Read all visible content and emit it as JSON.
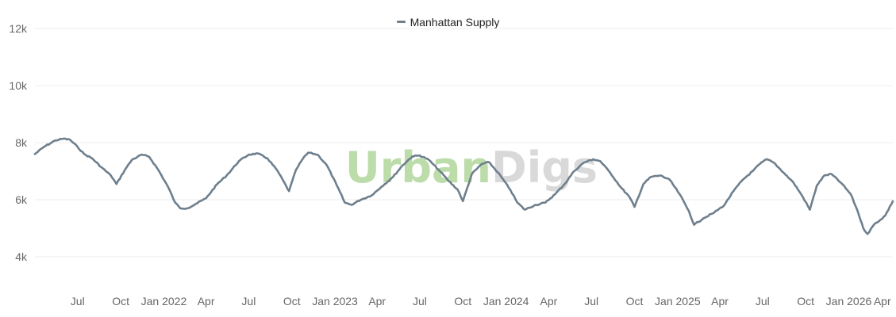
{
  "legend": {
    "label": "Manhattan Supply"
  },
  "watermark": {
    "part1": "Urban",
    "part2": "Digs",
    "color1": "#bcdcaa",
    "color2": "#d9d9d9"
  },
  "colors": {
    "series": "#6e7f8d",
    "grid": "#ececec"
  },
  "chart_data": {
    "type": "line",
    "title": "",
    "xlabel": "",
    "ylabel": "",
    "ylim": [
      3000,
      12500
    ],
    "xlim": [
      "2021-04-01",
      "2026-04-05"
    ],
    "grid": true,
    "legend_position": "top-center",
    "y_ticks": [
      {
        "value": 4000,
        "label": "4k"
      },
      {
        "value": 6000,
        "label": "6k"
      },
      {
        "value": 8000,
        "label": "8k"
      },
      {
        "value": 10000,
        "label": "10k"
      },
      {
        "value": 12000,
        "label": "12k"
      }
    ],
    "x_ticks": [
      {
        "value": "2021-07-01",
        "label": "Jul"
      },
      {
        "value": "2021-10-01",
        "label": "Oct"
      },
      {
        "value": "2022-01-01",
        "label": "Jan 2022"
      },
      {
        "value": "2022-04-01",
        "label": "Apr"
      },
      {
        "value": "2022-07-01",
        "label": "Jul"
      },
      {
        "value": "2022-10-01",
        "label": "Oct"
      },
      {
        "value": "2023-01-01",
        "label": "Jan 2023"
      },
      {
        "value": "2023-04-01",
        "label": "Apr"
      },
      {
        "value": "2023-07-01",
        "label": "Jul"
      },
      {
        "value": "2023-10-01",
        "label": "Oct"
      },
      {
        "value": "2024-01-01",
        "label": "Jan 2024"
      },
      {
        "value": "2024-04-01",
        "label": "Apr"
      },
      {
        "value": "2024-07-01",
        "label": "Jul"
      },
      {
        "value": "2024-10-01",
        "label": "Oct"
      },
      {
        "value": "2025-01-01",
        "label": "Jan 2025"
      },
      {
        "value": "2025-04-01",
        "label": "Apr"
      },
      {
        "value": "2025-07-01",
        "label": "Jul"
      },
      {
        "value": "2025-10-01",
        "label": "Oct"
      },
      {
        "value": "2026-01-01",
        "label": "Jan 2026"
      },
      {
        "value": "2026-04-01",
        "label": "Apr"
      }
    ],
    "series": [
      {
        "name": "Manhattan Supply",
        "points": [
          [
            "2021-04-01",
            7600
          ],
          [
            "2021-04-20",
            7850
          ],
          [
            "2021-05-15",
            8080
          ],
          [
            "2021-06-01",
            8140
          ],
          [
            "2021-06-15",
            8100
          ],
          [
            "2021-07-01",
            7850
          ],
          [
            "2021-07-15",
            7600
          ],
          [
            "2021-08-01",
            7450
          ],
          [
            "2021-08-20",
            7150
          ],
          [
            "2021-09-10",
            6850
          ],
          [
            "2021-09-22",
            6550
          ],
          [
            "2021-10-10",
            7050
          ],
          [
            "2021-10-25",
            7400
          ],
          [
            "2021-11-15",
            7580
          ],
          [
            "2021-12-01",
            7500
          ],
          [
            "2021-12-20",
            7050
          ],
          [
            "2022-01-10",
            6450
          ],
          [
            "2022-01-25",
            5900
          ],
          [
            "2022-02-05",
            5700
          ],
          [
            "2022-02-20",
            5700
          ],
          [
            "2022-03-10",
            5850
          ],
          [
            "2022-04-01",
            6050
          ],
          [
            "2022-04-25",
            6550
          ],
          [
            "2022-05-15",
            6850
          ],
          [
            "2022-06-10",
            7350
          ],
          [
            "2022-07-01",
            7580
          ],
          [
            "2022-07-20",
            7620
          ],
          [
            "2022-08-10",
            7450
          ],
          [
            "2022-09-01",
            7000
          ],
          [
            "2022-09-25",
            6300
          ],
          [
            "2022-10-10",
            7050
          ],
          [
            "2022-10-25",
            7450
          ],
          [
            "2022-11-05",
            7650
          ],
          [
            "2022-11-25",
            7580
          ],
          [
            "2022-12-15",
            7200
          ],
          [
            "2023-01-05",
            6500
          ],
          [
            "2023-01-22",
            5900
          ],
          [
            "2023-02-05",
            5820
          ],
          [
            "2023-02-25",
            6000
          ],
          [
            "2023-03-20",
            6150
          ],
          [
            "2023-04-10",
            6450
          ],
          [
            "2023-05-05",
            6800
          ],
          [
            "2023-05-25",
            7200
          ],
          [
            "2023-06-15",
            7520
          ],
          [
            "2023-07-01",
            7550
          ],
          [
            "2023-07-20",
            7400
          ],
          [
            "2023-08-10",
            7050
          ],
          [
            "2023-09-01",
            6650
          ],
          [
            "2023-09-20",
            6350
          ],
          [
            "2023-10-01",
            5950
          ],
          [
            "2023-10-20",
            6900
          ],
          [
            "2023-11-10",
            7250
          ],
          [
            "2023-11-25",
            7320
          ],
          [
            "2023-12-15",
            6950
          ],
          [
            "2024-01-10",
            6350
          ],
          [
            "2024-01-25",
            5900
          ],
          [
            "2024-02-10",
            5650
          ],
          [
            "2024-03-01",
            5800
          ],
          [
            "2024-03-25",
            5900
          ],
          [
            "2024-04-15",
            6200
          ],
          [
            "2024-05-05",
            6550
          ],
          [
            "2024-05-25",
            7000
          ],
          [
            "2024-06-15",
            7300
          ],
          [
            "2024-07-05",
            7420
          ],
          [
            "2024-07-20",
            7350
          ],
          [
            "2024-08-10",
            6950
          ],
          [
            "2024-09-01",
            6450
          ],
          [
            "2024-09-20",
            6100
          ],
          [
            "2024-10-01",
            5750
          ],
          [
            "2024-10-20",
            6550
          ],
          [
            "2024-11-05",
            6800
          ],
          [
            "2024-11-25",
            6850
          ],
          [
            "2024-12-15",
            6700
          ],
          [
            "2025-01-05",
            6200
          ],
          [
            "2025-01-25",
            5600
          ],
          [
            "2025-02-05",
            5120
          ],
          [
            "2025-02-25",
            5350
          ],
          [
            "2025-03-20",
            5550
          ],
          [
            "2025-04-10",
            5800
          ],
          [
            "2025-04-30",
            6300
          ],
          [
            "2025-05-20",
            6700
          ],
          [
            "2025-06-10",
            7000
          ],
          [
            "2025-06-25",
            7250
          ],
          [
            "2025-07-10",
            7420
          ],
          [
            "2025-07-25",
            7300
          ],
          [
            "2025-08-15",
            6950
          ],
          [
            "2025-09-05",
            6600
          ],
          [
            "2025-09-25",
            6100
          ],
          [
            "2025-10-10",
            5650
          ],
          [
            "2025-10-25",
            6500
          ],
          [
            "2025-11-10",
            6850
          ],
          [
            "2025-11-25",
            6900
          ],
          [
            "2025-12-15",
            6600
          ],
          [
            "2026-01-05",
            6200
          ],
          [
            "2026-01-20",
            5600
          ],
          [
            "2026-02-01",
            5000
          ],
          [
            "2026-02-10",
            4800
          ],
          [
            "2026-02-25",
            5150
          ],
          [
            "2026-03-10",
            5300
          ],
          [
            "2026-03-20",
            5450
          ],
          [
            "2026-04-05",
            5950
          ]
        ]
      }
    ]
  }
}
